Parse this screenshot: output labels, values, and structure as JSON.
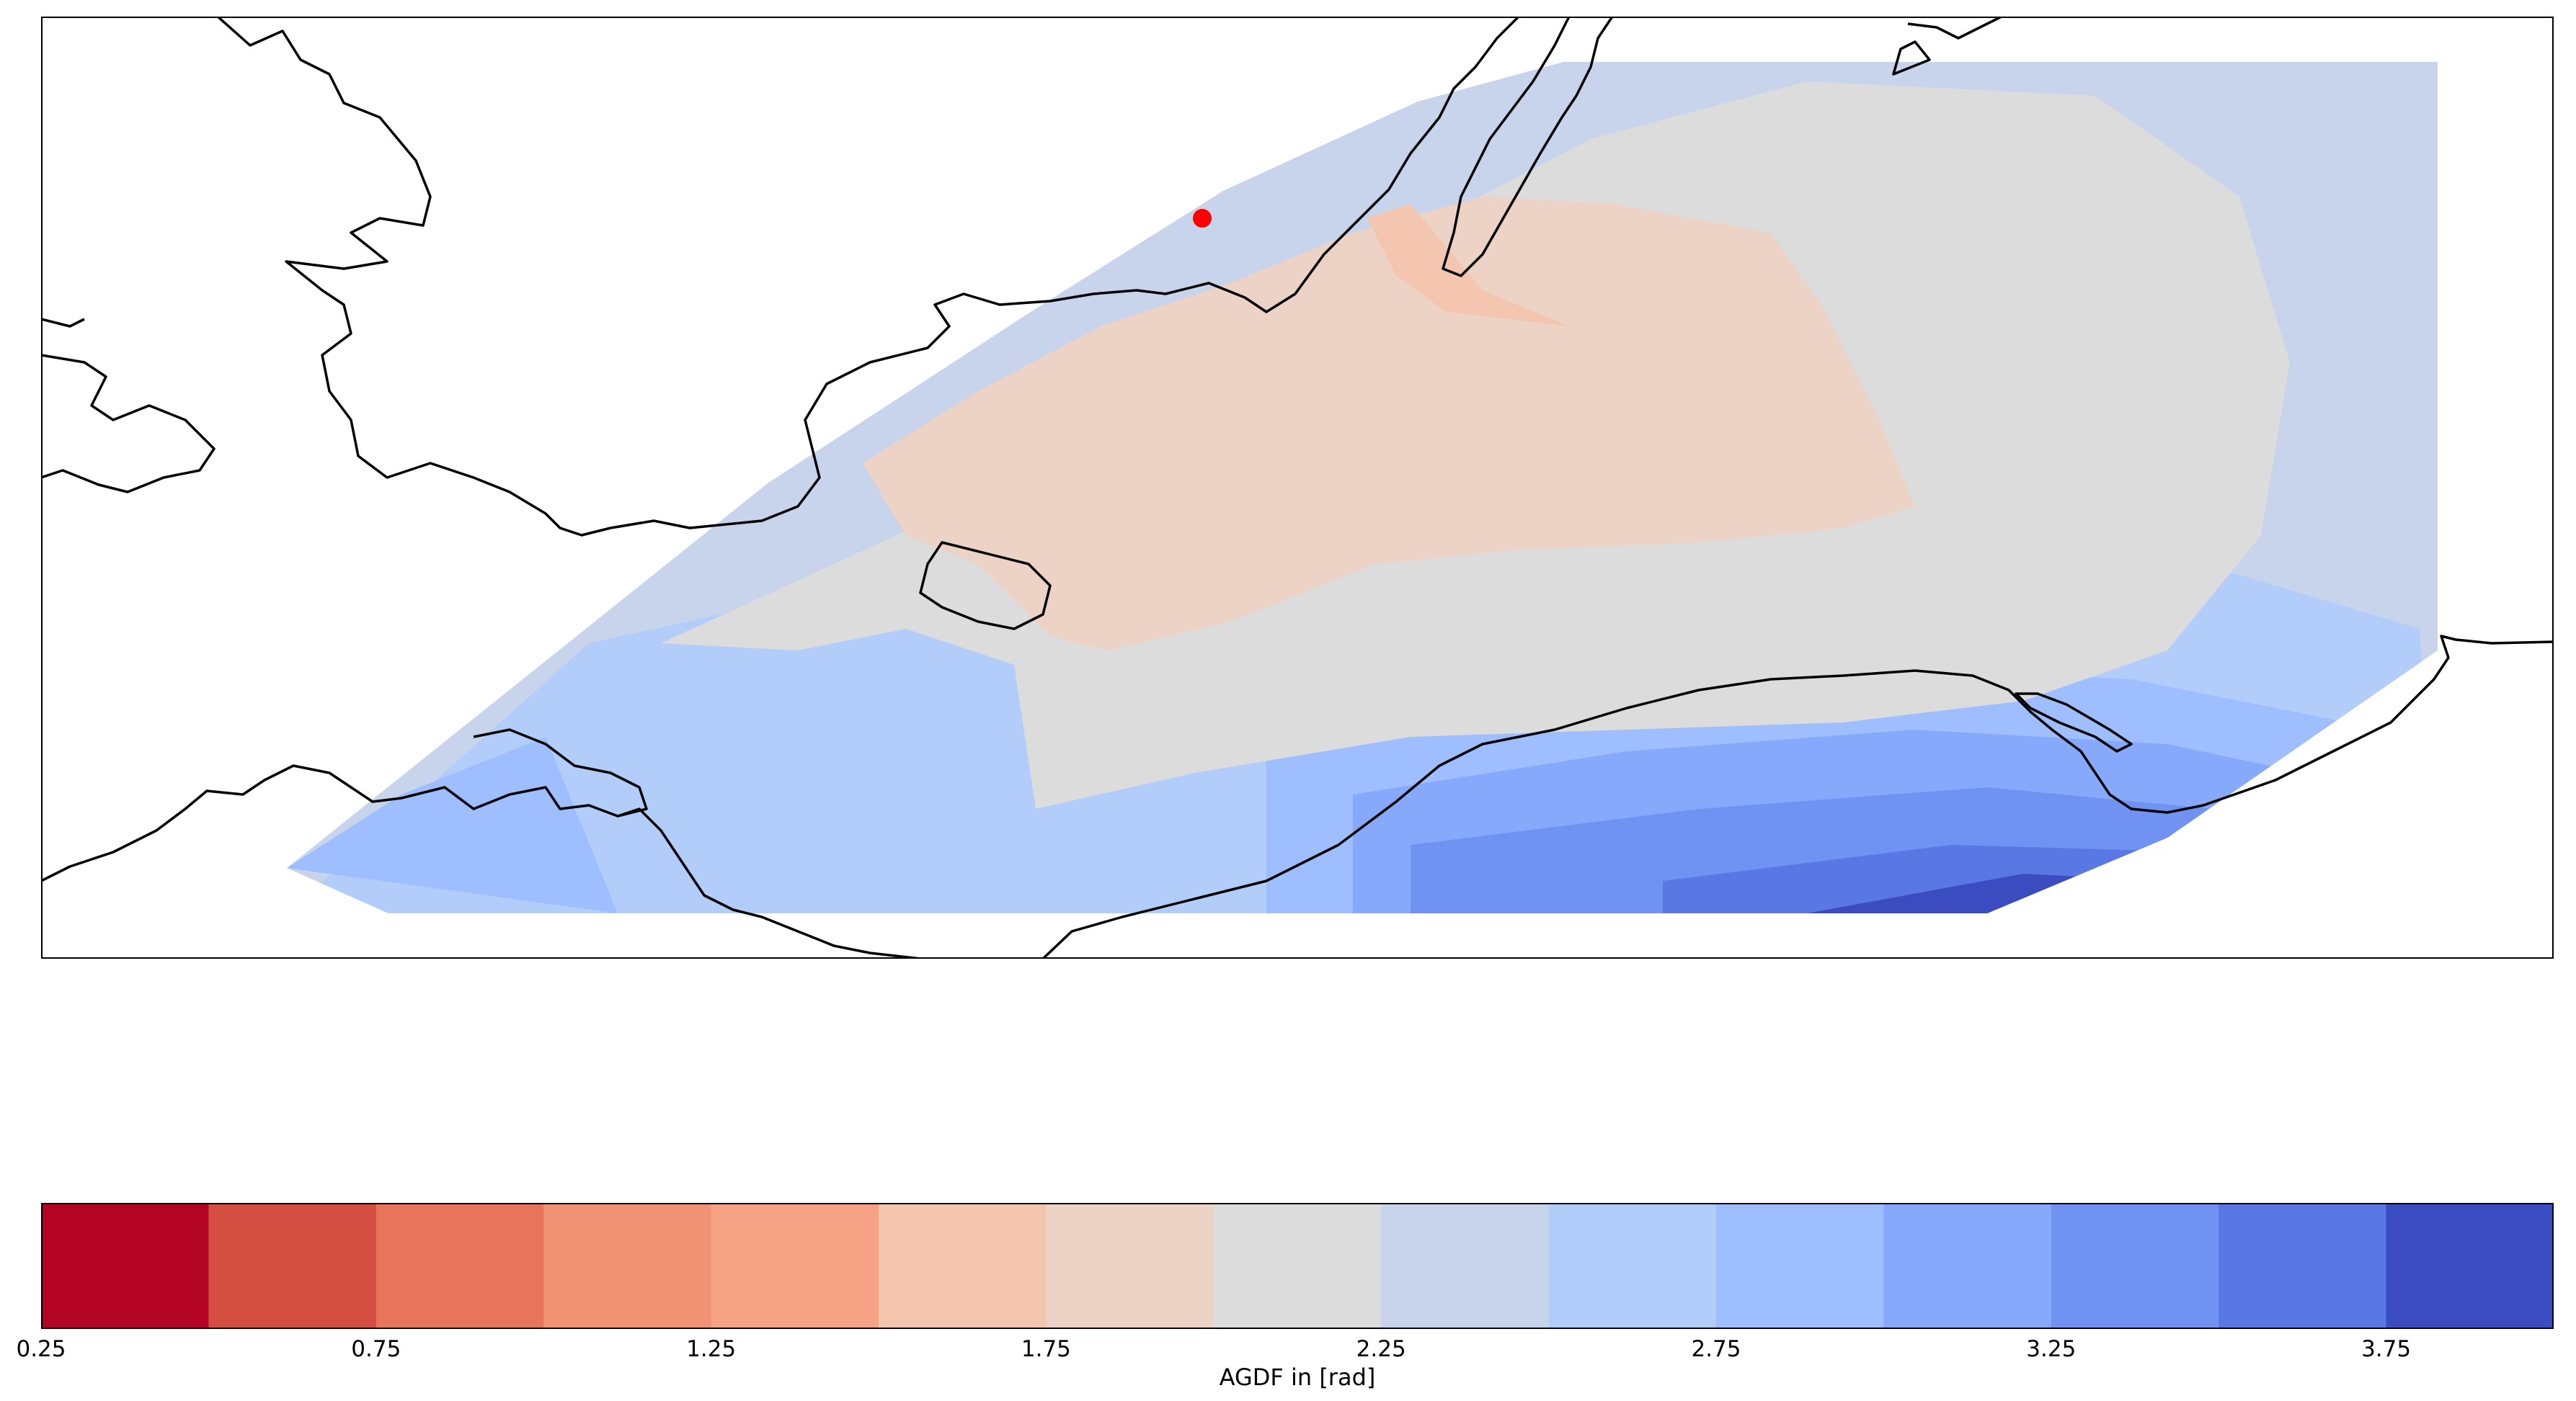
{
  "chart_data": {
    "type": "heatmap",
    "subtype": "filled contour map",
    "title": "",
    "marker": {
      "color": "#ff0000",
      "shape": "circle"
    },
    "colormap": "coolwarm (reversed)",
    "levels": [
      0.25,
      0.5,
      0.75,
      1.0,
      1.25,
      1.5,
      1.75,
      2.0,
      2.25,
      2.5,
      2.75,
      3.0,
      3.25,
      3.5,
      3.75,
      4.0
    ],
    "level_colors": [
      "#b40426",
      "#d44e41",
      "#e7745b",
      "#f29274",
      "#f6a385",
      "#f4c6af",
      "#ecd3c5",
      "#dcdcdc",
      "#c8d4eb",
      "#b3cdfb",
      "#9ebeff",
      "#86a9fc",
      "#6f92f3",
      "#5a78e4",
      "#3b4cc0"
    ],
    "colorbar": {
      "label": "AGDF in [rad]",
      "ticks": [
        "0.25",
        "0.75",
        "1.25",
        "1.75",
        "2.25",
        "2.75",
        "3.25",
        "3.75"
      ]
    },
    "grid": false,
    "legend": "none"
  }
}
